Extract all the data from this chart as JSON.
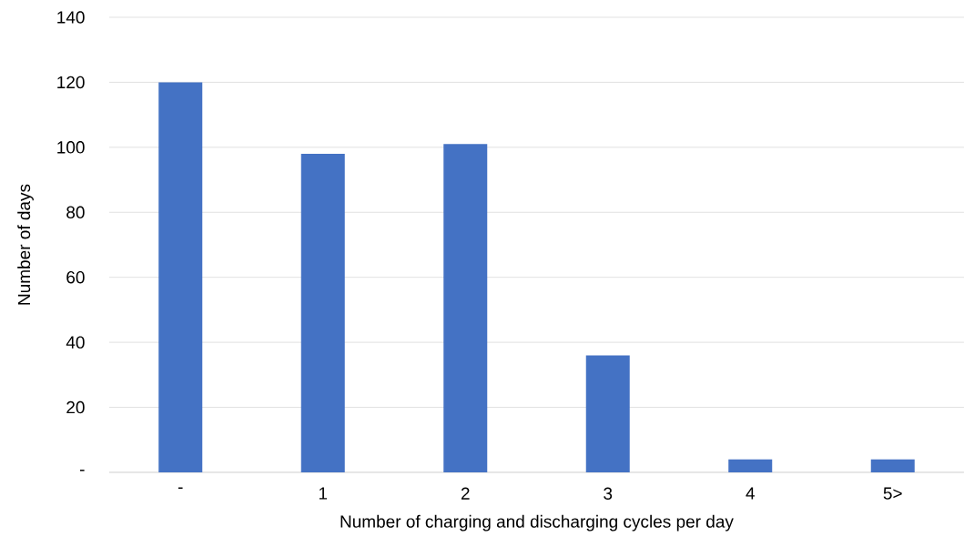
{
  "chart_data": {
    "type": "bar",
    "xlabel": "Number of charging and discharging cycles per day",
    "ylabel": "Number of days",
    "categories": [
      "-",
      "1",
      "2",
      "3",
      "4",
      "5>"
    ],
    "values": [
      120,
      98,
      101,
      36,
      4,
      4
    ],
    "color": "#4472c4",
    "ylim": [
      0,
      140
    ],
    "yticks": [
      {
        "value": 0,
        "label": "-"
      },
      20,
      40,
      60,
      80,
      100,
      120,
      140
    ],
    "grid": "y"
  }
}
